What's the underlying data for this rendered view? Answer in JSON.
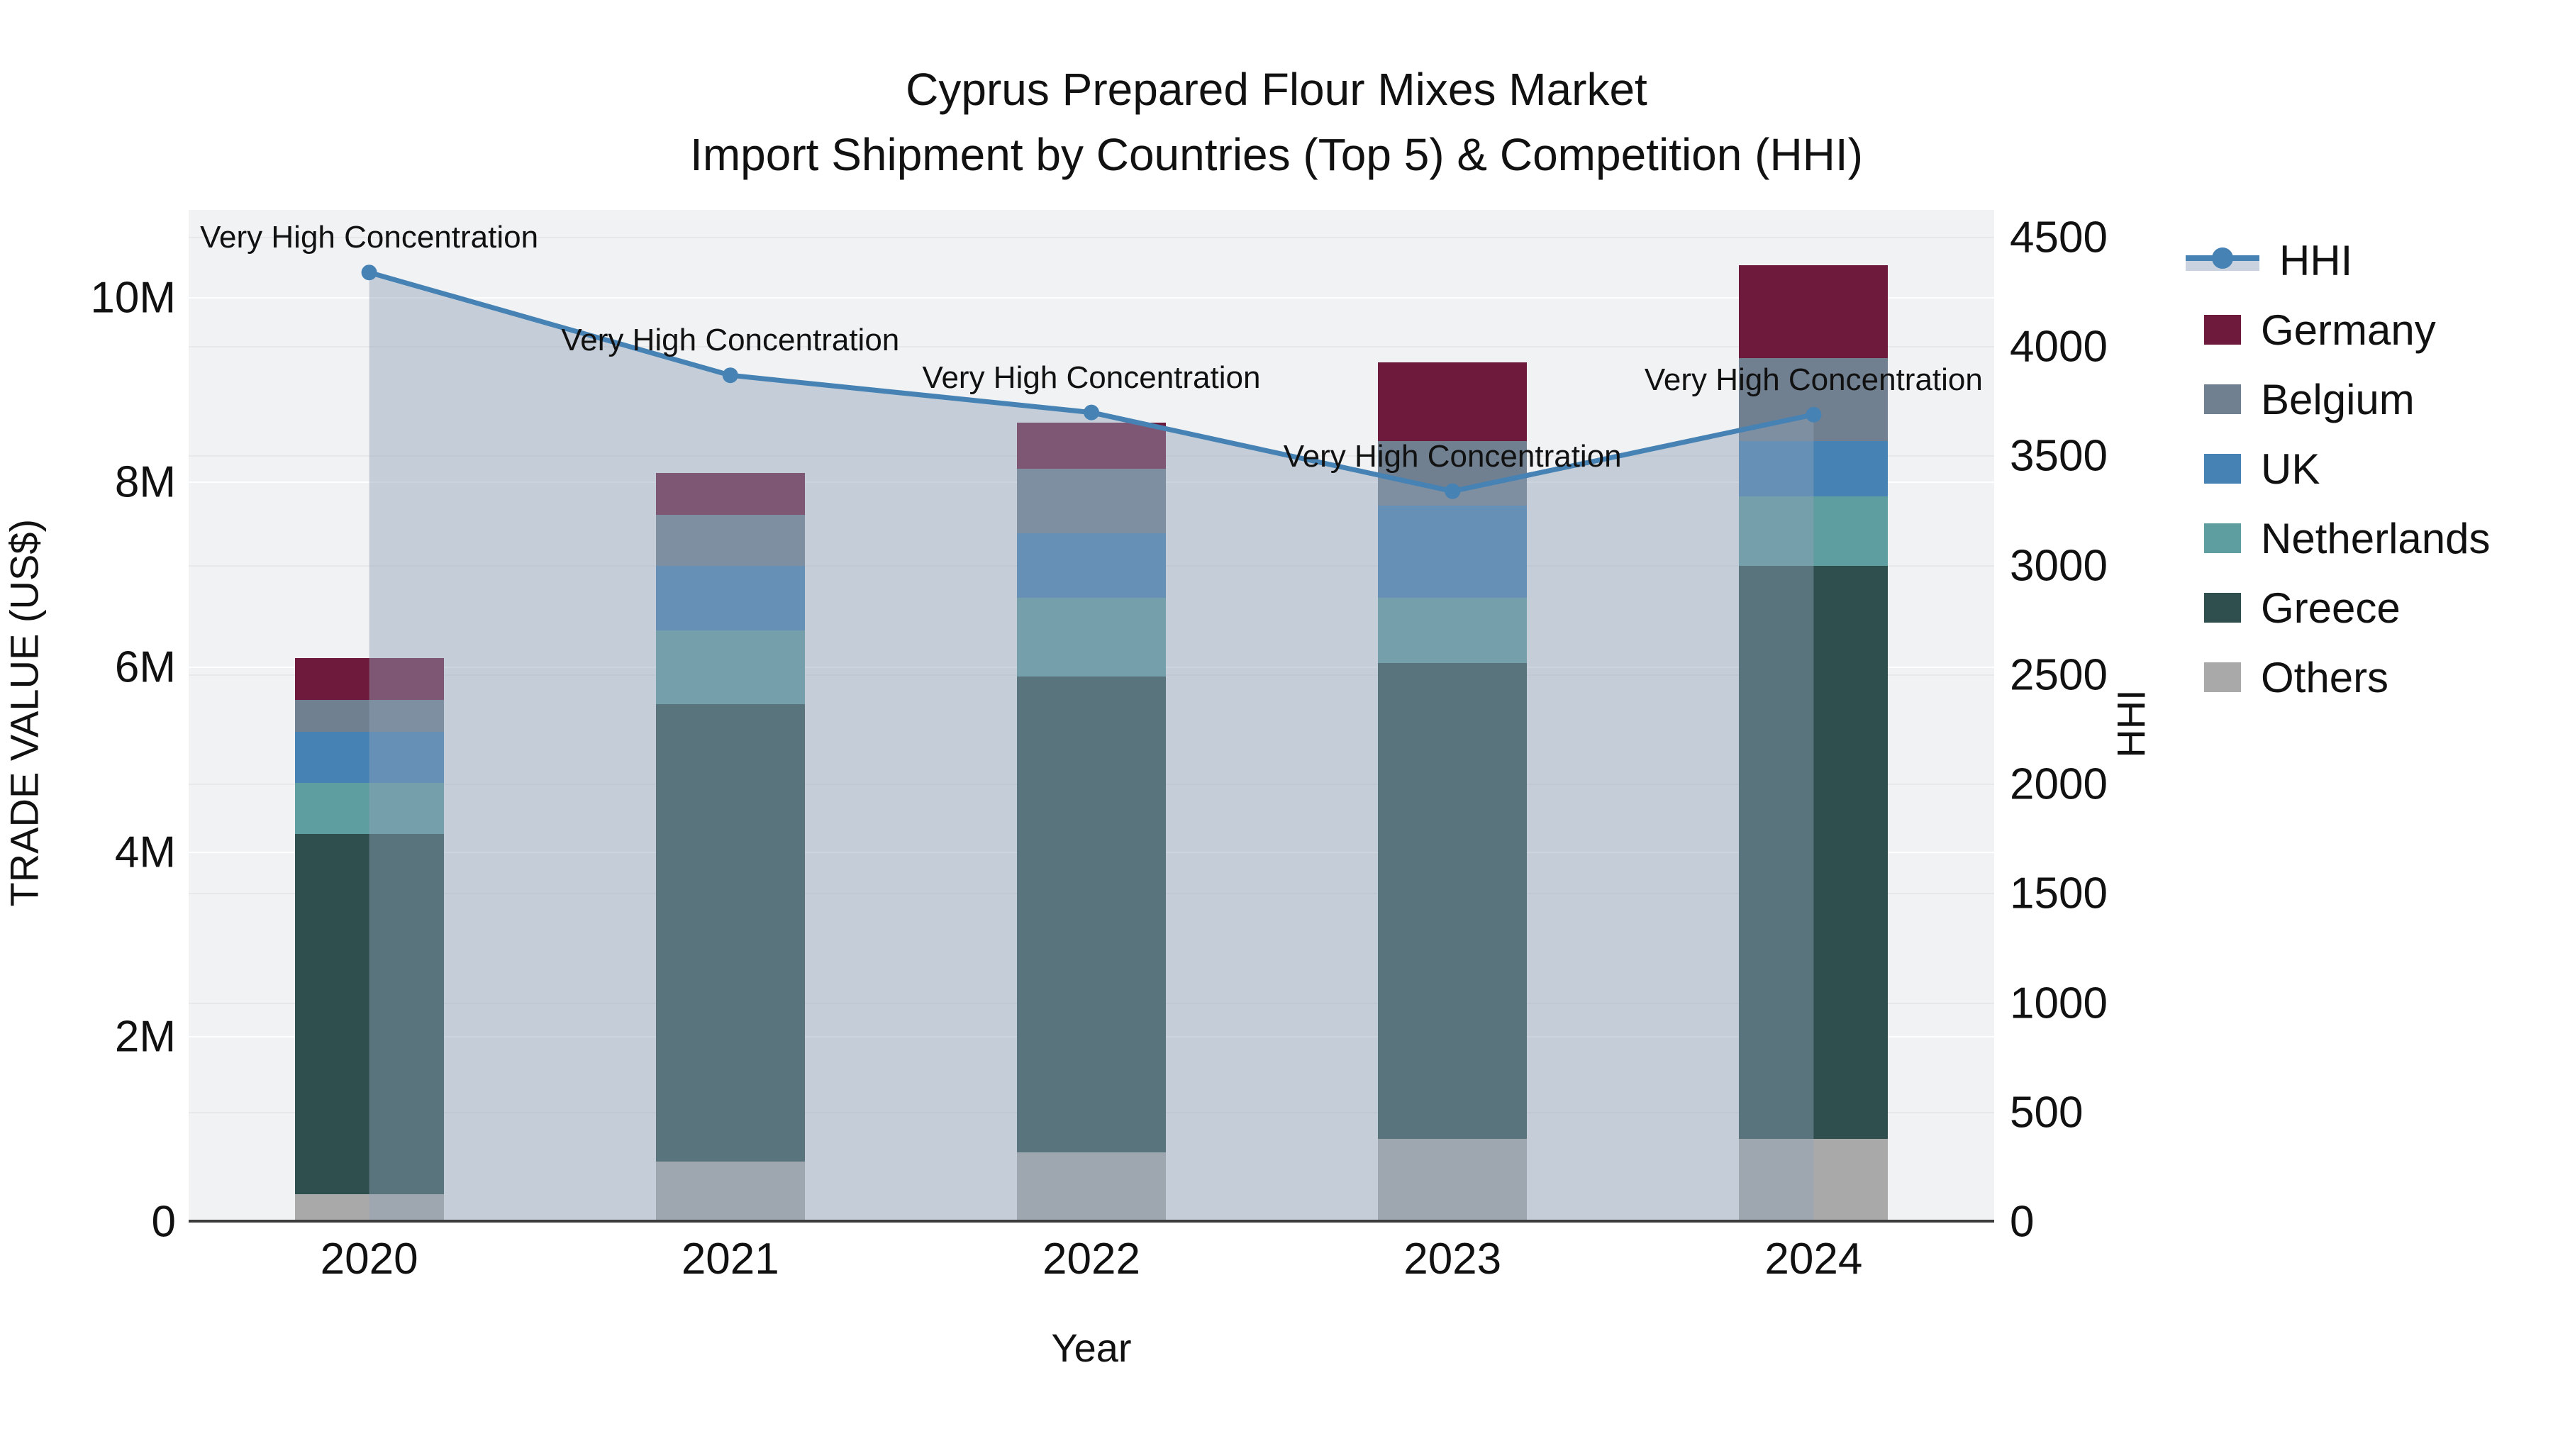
{
  "title": {
    "line1": "Cyprus Prepared Flour Mixes Market",
    "line2": "Import Shipment by Countries (Top 5) & Competition (HHI)"
  },
  "axes": {
    "left": {
      "title": "TRADE VALUE (US$)",
      "tick_labels": [
        "0",
        "2M",
        "4M",
        "6M",
        "8M",
        "10M"
      ],
      "tick_values": [
        0,
        2000000,
        4000000,
        6000000,
        8000000,
        10000000
      ]
    },
    "right": {
      "title": "HHI",
      "tick_labels": [
        "0",
        "500",
        "1000",
        "1500",
        "2000",
        "2500",
        "3000",
        "3500",
        "4000",
        "4500"
      ],
      "tick_values": [
        0,
        500,
        1000,
        1500,
        2000,
        2500,
        3000,
        3500,
        4000,
        4500
      ]
    },
    "bottom": {
      "title": "Year",
      "tick_labels": [
        "2020",
        "2021",
        "2022",
        "2023",
        "2024"
      ]
    }
  },
  "legend": {
    "items": [
      {
        "label": "HHI",
        "type": "line",
        "color": "#4682b4"
      },
      {
        "label": "Germany",
        "type": "box",
        "color": "#6d1a3c"
      },
      {
        "label": "Belgium",
        "type": "box",
        "color": "#708090"
      },
      {
        "label": "UK",
        "type": "box",
        "color": "#4682b4"
      },
      {
        "label": "Netherlands",
        "type": "box",
        "color": "#5f9ea0"
      },
      {
        "label": "Greece",
        "type": "box",
        "color": "#2f4f4f"
      },
      {
        "label": "Others",
        "type": "box",
        "color": "#a9a9a9"
      }
    ]
  },
  "colors": {
    "plot_background": "#f1f2f3",
    "hhi_line": "#4682b4",
    "hhi_fill": "rgba(144,161,185,0.45)",
    "axis_line": "#3c3c3c"
  },
  "chart_data": {
    "type": "bar+line",
    "title": "Cyprus Prepared Flour Mixes Market — Import Shipment by Countries (Top 5) & Competition (HHI)",
    "categories": [
      "2020",
      "2021",
      "2022",
      "2023",
      "2024"
    ],
    "xlabel": "Year",
    "ylabel_left": "TRADE VALUE (US$)",
    "ylabel_right": "HHI",
    "ylim_left": [
      0,
      10950000
    ],
    "ylim_right": [
      0,
      4626
    ],
    "grid": true,
    "legend_position": "right",
    "bar_stack_order_bottom_to_top": [
      "Others",
      "Greece",
      "Netherlands",
      "UK",
      "Belgium",
      "Germany"
    ],
    "series": [
      {
        "name": "Others",
        "color": "#a9a9a9",
        "values": [
          300000,
          650000,
          750000,
          900000,
          900000
        ]
      },
      {
        "name": "Greece",
        "color": "#2f4f4f",
        "values": [
          3900000,
          4950000,
          5150000,
          5150000,
          6200000
        ]
      },
      {
        "name": "Netherlands",
        "color": "#5f9ea0",
        "values": [
          550000,
          800000,
          850000,
          700000,
          750000
        ]
      },
      {
        "name": "UK",
        "color": "#4682b4",
        "values": [
          550000,
          700000,
          700000,
          1000000,
          600000
        ]
      },
      {
        "name": "Belgium",
        "color": "#708090",
        "values": [
          350000,
          550000,
          700000,
          700000,
          900000
        ]
      },
      {
        "name": "Germany",
        "color": "#6d1a3c",
        "values": [
          450000,
          450000,
          500000,
          850000,
          1000000
        ]
      }
    ],
    "bar_totals": [
      6100000,
      8100000,
      8650000,
      9300000,
      10350000
    ],
    "line_series": {
      "name": "HHI",
      "axis": "right",
      "color": "#4682b4",
      "fill": "tozeroy",
      "fill_color": "rgba(144,161,185,0.45)",
      "values": [
        4340,
        3870,
        3700,
        3340,
        3690
      ],
      "point_annotations": [
        "Very High Concentration",
        "Very High Concentration",
        "Very High Concentration",
        "Very High Concentration",
        "Very High Concentration"
      ]
    }
  }
}
